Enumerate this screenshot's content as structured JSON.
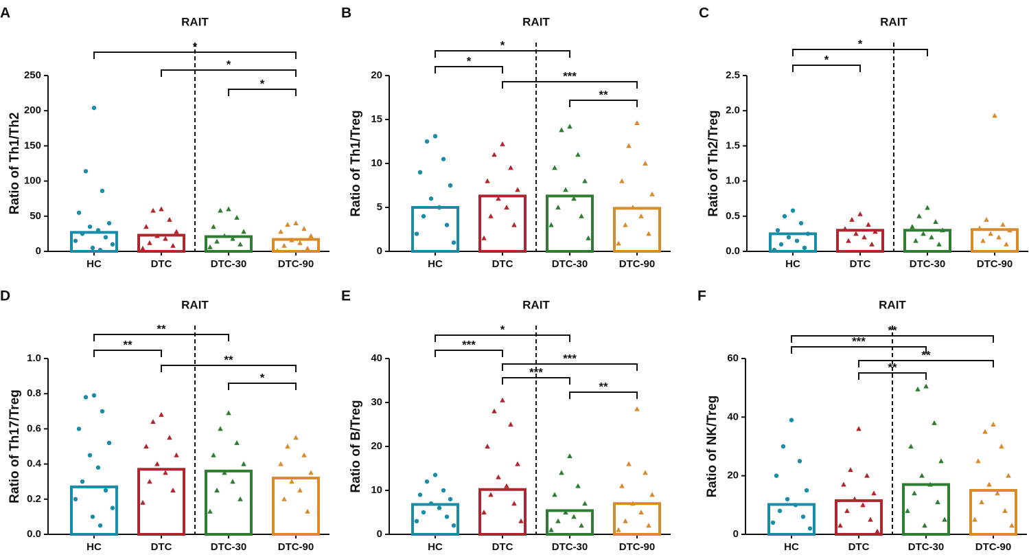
{
  "chart_data": [
    {
      "type": "bar",
      "label": "A",
      "title": "RAIT",
      "y_label": "Ratio of Th1/Th2",
      "categories": [
        "HC",
        "DTC",
        "DTC-30",
        "DTC-90"
      ],
      "values": [
        27,
        23,
        21,
        17
      ],
      "colors": [
        "#1a8ca8",
        "#b0262f",
        "#2e7d32",
        "#d98a2b"
      ],
      "markers": [
        "circle",
        "triangle",
        "triangle",
        "triangle"
      ],
      "points": [
        [
          204,
          114,
          86,
          55,
          40,
          35,
          30,
          25,
          20,
          15,
          10,
          5,
          2
        ],
        [
          60,
          58,
          45,
          35,
          28,
          22,
          18,
          12,
          8,
          4
        ],
        [
          60,
          58,
          48,
          35,
          28,
          22,
          18,
          14,
          10,
          6
        ],
        [
          40,
          38,
          32,
          28,
          22,
          16,
          12,
          8,
          4,
          1
        ]
      ],
      "ylim": [
        0,
        250
      ],
      "yticks": [
        0,
        50,
        100,
        150,
        200,
        250
      ],
      "annotations": [
        "*",
        "*",
        "*"
      ]
    },
    {
      "type": "bar",
      "label": "B",
      "title": "RAIT",
      "y_label": "Ratio of Th1/Treg",
      "categories": [
        "HC",
        "DTC",
        "DTC-30",
        "DTC-90"
      ],
      "values": [
        5.0,
        6.3,
        6.3,
        4.9
      ],
      "colors": [
        "#1a8ca8",
        "#b0262f",
        "#2e7d32",
        "#d98a2b"
      ],
      "markers": [
        "circle",
        "triangle",
        "triangle",
        "triangle"
      ],
      "points": [
        [
          13.1,
          12.5,
          10.5,
          9,
          7.5,
          6,
          5,
          4,
          3,
          2,
          1
        ],
        [
          12.2,
          11,
          9.5,
          8,
          7,
          6,
          5,
          4,
          3,
          1.5
        ],
        [
          14.2,
          13.8,
          11,
          9.5,
          8,
          7,
          6,
          5,
          4,
          3,
          1.5
        ],
        [
          14.6,
          12,
          10,
          8,
          6.5,
          5,
          4,
          3,
          2,
          0.9
        ]
      ],
      "ylim": [
        0,
        20
      ],
      "yticks": [
        0,
        5,
        10,
        15,
        20
      ],
      "annotations": [
        "*",
        "*",
        "***",
        "**"
      ]
    },
    {
      "type": "bar",
      "label": "C",
      "title": "RAIT",
      "y_label": "Ratio of Th2/Treg",
      "categories": [
        "HC",
        "DTC",
        "DTC-30",
        "DTC-90"
      ],
      "values": [
        0.25,
        0.3,
        0.3,
        0.31
      ],
      "colors": [
        "#1a8ca8",
        "#b0262f",
        "#2e7d32",
        "#d98a2b"
      ],
      "markers": [
        "circle",
        "triangle",
        "triangle",
        "triangle"
      ],
      "points": [
        [
          0.58,
          0.5,
          0.4,
          0.3,
          0.25,
          0.2,
          0.15,
          0.1,
          0.05,
          0.02
        ],
        [
          0.53,
          0.45,
          0.38,
          0.32,
          0.28,
          0.25,
          0.2,
          0.15,
          0.1
        ],
        [
          0.62,
          0.5,
          0.42,
          0.35,
          0.3,
          0.25,
          0.2,
          0.15,
          0.1
        ],
        [
          1.93,
          0.45,
          0.38,
          0.33,
          0.3,
          0.25,
          0.2,
          0.15,
          0.1
        ]
      ],
      "ylim": [
        0,
        2.5
      ],
      "yticks": [
        {
          "value": 0,
          "label": "0.0"
        },
        0.5,
        {
          "value": 1,
          "label": "1.0"
        },
        1.5,
        {
          "value": 2,
          "label": "2.0"
        },
        2.5
      ],
      "annotations": [
        "*",
        "*"
      ]
    },
    {
      "type": "bar",
      "label": "D",
      "title": "RAIT",
      "y_label": "Ratio of Th17/Treg",
      "categories": [
        "HC",
        "DTC",
        "DTC-30",
        "DTC-90"
      ],
      "values": [
        0.27,
        0.37,
        0.36,
        0.32
      ],
      "colors": [
        "#1a8ca8",
        "#b0262f",
        "#2e7d32",
        "#d98a2b"
      ],
      "markers": [
        "circle",
        "triangle",
        "triangle",
        "triangle"
      ],
      "points": [
        [
          0.79,
          0.78,
          0.7,
          0.6,
          0.52,
          0.45,
          0.38,
          0.3,
          0.25,
          0.2,
          0.15,
          0.1,
          0.05
        ],
        [
          0.68,
          0.64,
          0.55,
          0.5,
          0.45,
          0.4,
          0.35,
          0.3,
          0.25,
          0.18
        ],
        [
          0.69,
          0.6,
          0.52,
          0.45,
          0.4,
          0.35,
          0.3,
          0.25,
          0.2,
          0.13
        ],
        [
          0.55,
          0.5,
          0.45,
          0.4,
          0.35,
          0.3,
          0.25,
          0.2,
          0.13
        ]
      ],
      "ylim": [
        0,
        1
      ],
      "yticks": [
        {
          "value": 0,
          "label": "0.0"
        },
        0.2,
        0.4,
        0.6,
        0.8,
        {
          "value": 1,
          "label": "1.0"
        }
      ],
      "annotations": [
        "**",
        "**",
        "**",
        "*"
      ]
    },
    {
      "type": "bar",
      "label": "E",
      "title": "RAIT",
      "y_label": "Ratio of B/Treg",
      "categories": [
        "HC",
        "DTC",
        "DTC-30",
        "DTC-90"
      ],
      "values": [
        6.8,
        10.2,
        5.4,
        7.0
      ],
      "colors": [
        "#1a8ca8",
        "#b0262f",
        "#2e7d32",
        "#d98a2b"
      ],
      "markers": [
        "circle",
        "triangle",
        "triangle",
        "triangle"
      ],
      "points": [
        [
          13.5,
          12,
          10,
          9,
          8,
          7,
          6,
          5,
          4,
          3,
          2
        ],
        [
          30.5,
          28,
          25,
          20,
          16,
          13,
          11,
          9,
          7,
          5,
          3
        ],
        [
          17.8,
          14,
          11,
          9,
          7,
          5,
          4,
          3,
          2,
          1
        ],
        [
          28.5,
          16,
          14,
          11,
          9,
          7,
          5,
          3,
          2,
          1
        ]
      ],
      "ylim": [
        0,
        40
      ],
      "yticks": [
        0,
        10,
        20,
        30,
        40
      ],
      "annotations": [
        "*",
        "***",
        "***",
        "***",
        "**"
      ]
    },
    {
      "type": "bar",
      "label": "F",
      "title": "RAIT",
      "y_label": "Ratio of NK/Treg",
      "categories": [
        "HC",
        "DTC",
        "DTC-30",
        "DTC-90"
      ],
      "values": [
        10.2,
        11.5,
        17.0,
        15.0
      ],
      "colors": [
        "#1a8ca8",
        "#b0262f",
        "#2e7d32",
        "#d98a2b"
      ],
      "markers": [
        "circle",
        "triangle",
        "triangle",
        "triangle"
      ],
      "points": [
        [
          39,
          30,
          25,
          20,
          15,
          12,
          10,
          8,
          6,
          4,
          2
        ],
        [
          36,
          22,
          20,
          17,
          14,
          12,
          10,
          8,
          5,
          3,
          1
        ],
        [
          50.5,
          49.5,
          38,
          30,
          25,
          20,
          17,
          14,
          11,
          8,
          5,
          3
        ],
        [
          37.5,
          35,
          30,
          25,
          20,
          17,
          14,
          11,
          8,
          5,
          3
        ]
      ],
      "ylim": [
        0,
        60
      ],
      "yticks": [
        0,
        20,
        40,
        60
      ],
      "annotations": [
        "**",
        "***",
        "**",
        "**"
      ]
    }
  ]
}
